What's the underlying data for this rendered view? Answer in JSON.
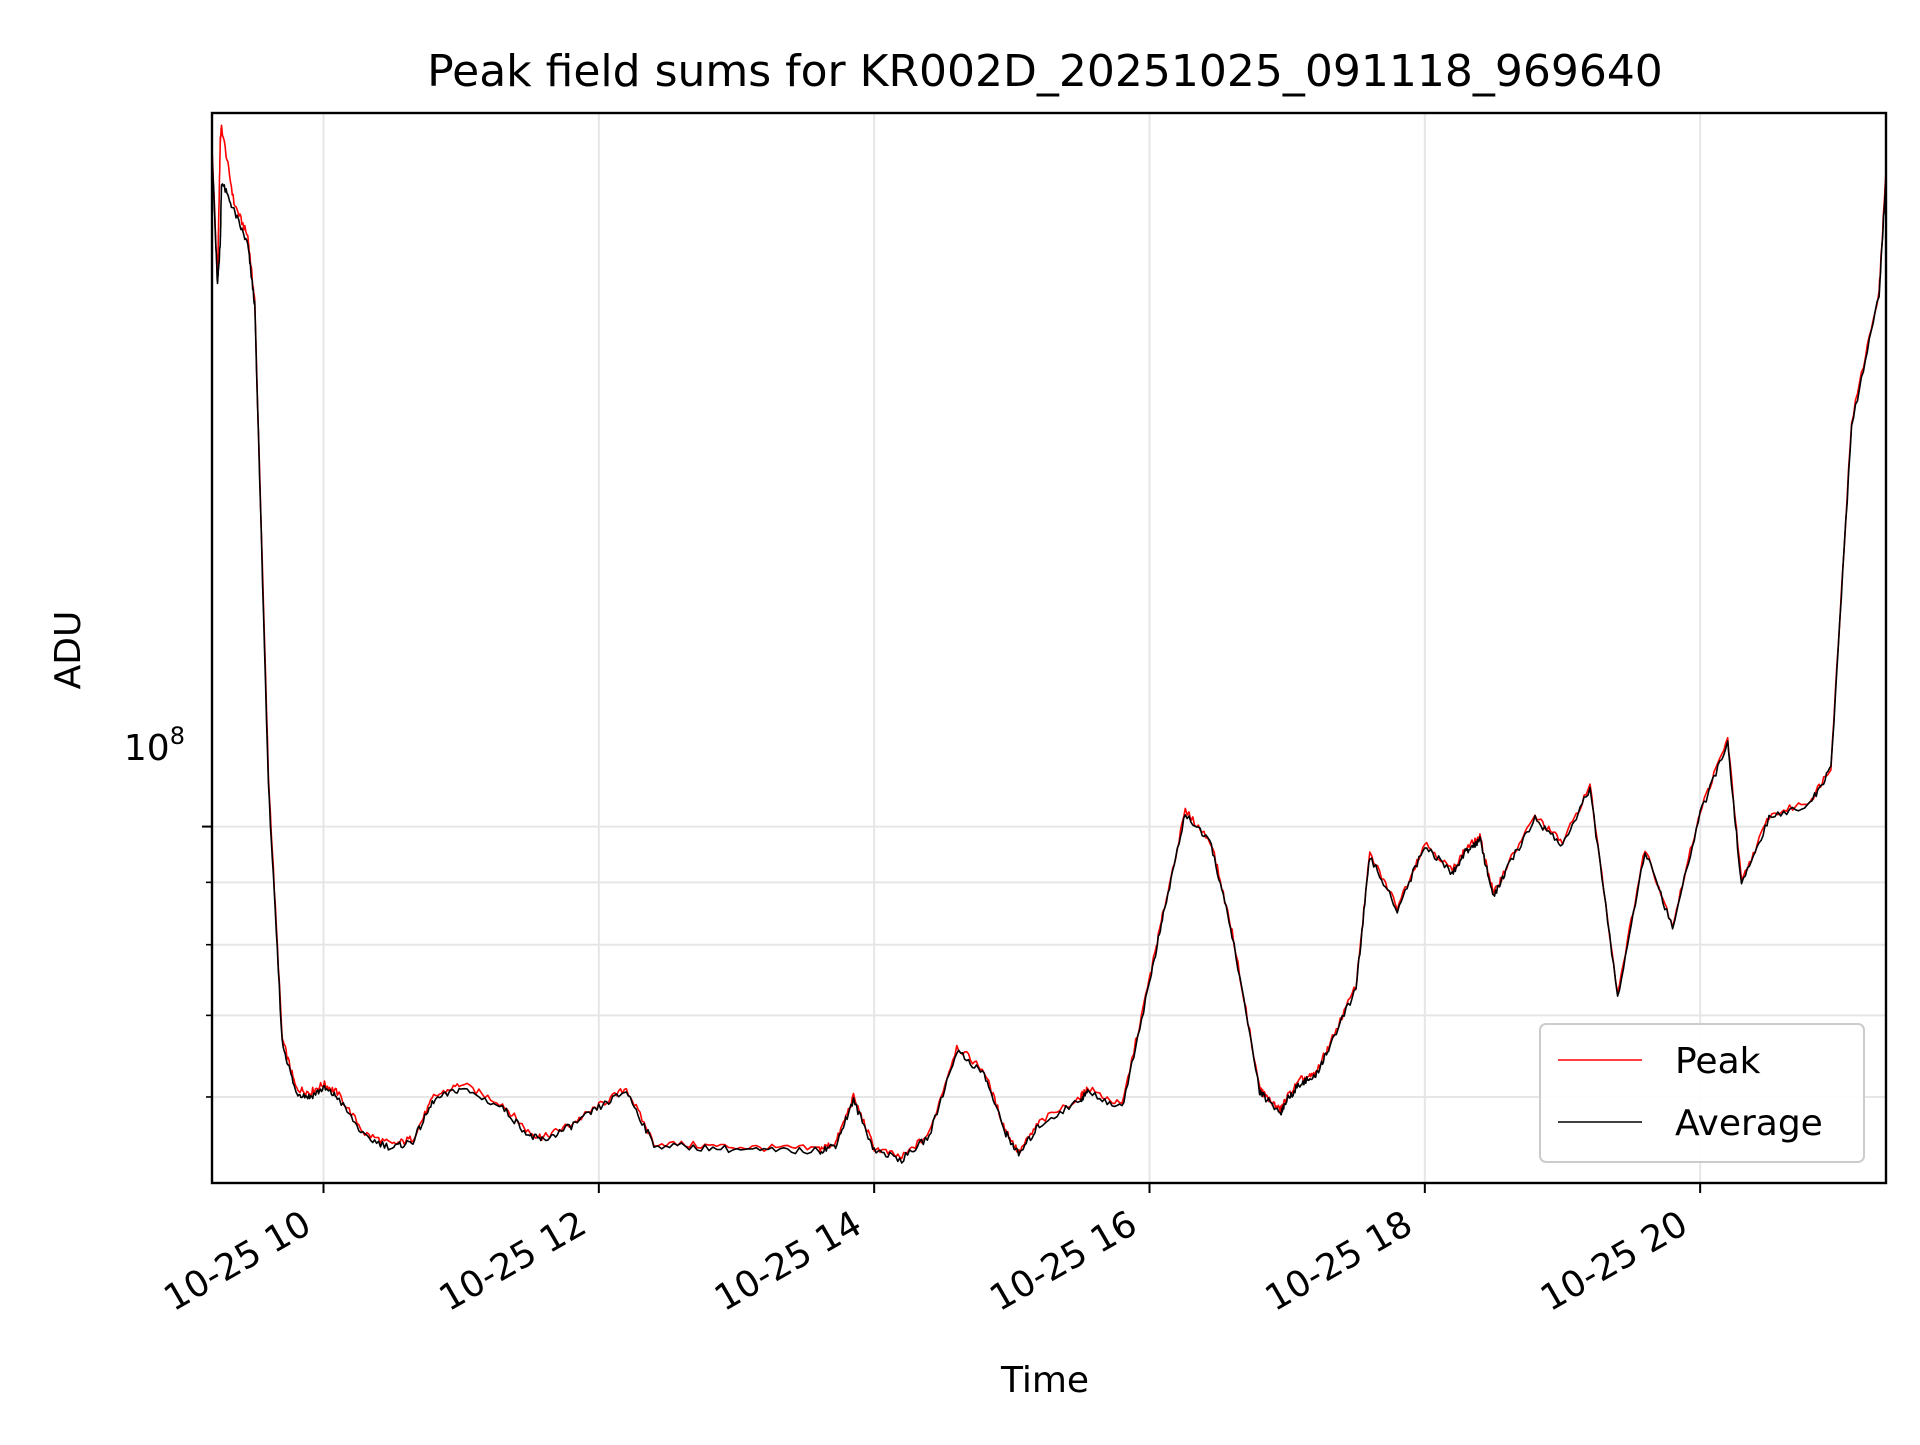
{
  "chart_data": {
    "type": "line",
    "title": "Peak field sums for KR002D_20251025_091118_969640",
    "xlabel": "Time",
    "ylabel": "ADU",
    "x_unit": "hours (2025-10-25)",
    "xlim": [
      9.19,
      21.35
    ],
    "ylim": [
      51000000,
      385000000
    ],
    "yscale": "log",
    "grid": true,
    "legend_position": "lower-right",
    "x_ticks": [
      {
        "value": 10,
        "label": "10-25 10"
      },
      {
        "value": 12,
        "label": "10-25 12"
      },
      {
        "value": 14,
        "label": "10-25 14"
      },
      {
        "value": 16,
        "label": "10-25 16"
      },
      {
        "value": 18,
        "label": "10-25 18"
      },
      {
        "value": 20,
        "label": "10-25 20"
      }
    ],
    "y_major_ticks": [
      {
        "value": 100000000,
        "base": "10",
        "exponent": "8"
      }
    ],
    "y_minor_ticks": [
      60000000,
      70000000,
      80000000,
      90000000
    ],
    "x": [
      9.19,
      9.23,
      9.25,
      9.26,
      9.35,
      9.45,
      9.5,
      9.6,
      9.7,
      9.8,
      9.9,
      10.0,
      10.1,
      10.3,
      10.5,
      10.65,
      10.8,
      11.0,
      11.3,
      11.5,
      11.6,
      11.8,
      12.0,
      12.2,
      12.4,
      12.8,
      13.2,
      13.6,
      13.72,
      13.85,
      14.0,
      14.2,
      14.4,
      14.6,
      14.8,
      14.95,
      15.05,
      15.2,
      15.5,
      15.55,
      15.8,
      16.0,
      16.1,
      16.26,
      16.45,
      16.6,
      16.8,
      16.85,
      16.95,
      17.0,
      17.1,
      17.2,
      17.3,
      17.5,
      17.6,
      17.8,
      18.0,
      18.2,
      18.3,
      18.4,
      18.5,
      18.6,
      18.8,
      19.0,
      19.2,
      19.4,
      19.6,
      19.8,
      20.0,
      20.2,
      20.3,
      20.5,
      20.8,
      20.95,
      21.1,
      21.3,
      21.35
    ],
    "series": [
      {
        "name": "Peak",
        "color": "#ff0000",
        "values": [
          360000000,
          280000000,
          366000000,
          375000000,
          325000000,
          305000000,
          270000000,
          110000000,
          67000000,
          61000000,
          60500000,
          61500000,
          60500000,
          56000000,
          54800000,
          55500000,
          60000000,
          61500000,
          59200000,
          56000000,
          55600000,
          57000000,
          59000000,
          61000000,
          55000000,
          54700000,
          54500000,
          54400000,
          55000000,
          60000000,
          54500000,
          53500000,
          56000000,
          66000000,
          63000000,
          56500000,
          54000000,
          57200000,
          60000000,
          61000000,
          59000000,
          75000000,
          85000000,
          103000000,
          97000000,
          82000000,
          61000000,
          60000000,
          58500000,
          60000000,
          62000000,
          62500000,
          66000000,
          74000000,
          95000000,
          86000000,
          97000000,
          92000000,
          96000000,
          98000000,
          88000000,
          93000000,
          102000000,
          97000000,
          108000000,
          73000000,
          96000000,
          83000000,
          103000000,
          118000000,
          90000000,
          102000000,
          105000000,
          112000000,
          215000000,
          275000000,
          345000000
        ]
      },
      {
        "name": "Average",
        "color": "#000000",
        "values": [
          358000000,
          278000000,
          302000000,
          338000000,
          320000000,
          300000000,
          268000000,
          108000000,
          66500000,
          60500000,
          60000000,
          61000000,
          60000000,
          55600000,
          54500000,
          55200000,
          59600000,
          61000000,
          58800000,
          55700000,
          55300000,
          56800000,
          58800000,
          60700000,
          54800000,
          54500000,
          54200000,
          54200000,
          54800000,
          59600000,
          54300000,
          53300000,
          55700000,
          65500000,
          62600000,
          56200000,
          53800000,
          56900000,
          59700000,
          60600000,
          58700000,
          74500000,
          84500000,
          102500000,
          96500000,
          81500000,
          60700000,
          59700000,
          58200000,
          59700000,
          61700000,
          62200000,
          65700000,
          73600000,
          94500000,
          85500000,
          96500000,
          91500000,
          95500000,
          97500000,
          87500000,
          92500000,
          101500000,
          96500000,
          107500000,
          72500000,
          95500000,
          82500000,
          102500000,
          117000000,
          89500000,
          101500000,
          104500000,
          111500000,
          213000000,
          273000000,
          342000000
        ]
      }
    ]
  }
}
